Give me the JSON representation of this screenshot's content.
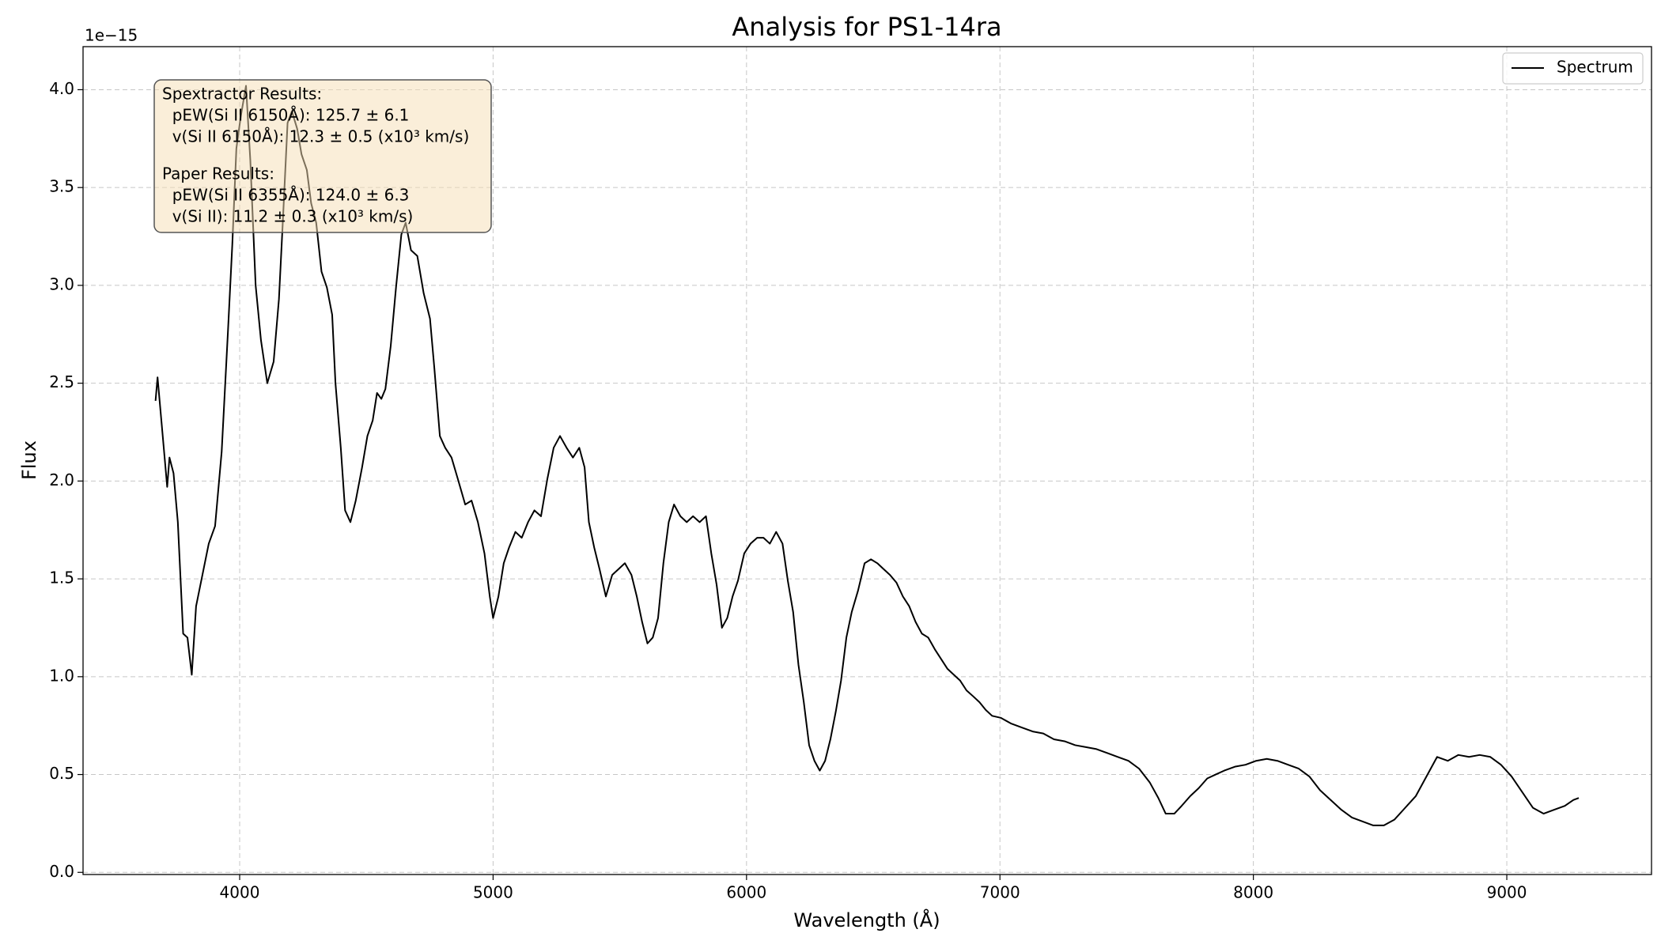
{
  "chart_data": {
    "type": "line",
    "title": "Analysis for PS1-14ra",
    "xlabel": "Wavelength (Å)",
    "ylabel": "Flux",
    "y_offset_label": "1e−15",
    "xlim": [
      3382,
      9571
    ],
    "ylim": [
      -0.011,
      4.22
    ],
    "xticks": [
      4000,
      5000,
      6000,
      7000,
      8000,
      9000
    ],
    "yticks": [
      {
        "value": 0,
        "label": "0.0"
      },
      0.5,
      {
        "value": 1,
        "label": "1.0"
      },
      1.5,
      {
        "value": 2,
        "label": "2.0"
      },
      2.5,
      {
        "value": 3,
        "label": "3.0"
      },
      3.5,
      {
        "value": 4,
        "label": "4.0"
      }
    ],
    "grid": true,
    "legend_position": "upper right",
    "x": [
      3668,
      3676,
      3693,
      3714,
      3723,
      3739,
      3756,
      3777,
      3794,
      3811,
      3828,
      3853,
      3878,
      3903,
      3929,
      3954,
      3971,
      3987,
      4004,
      4025,
      4042,
      4063,
      4084,
      4109,
      4134,
      4155,
      4172,
      4189,
      4206,
      4227,
      4244,
      4265,
      4282,
      4302,
      4323,
      4344,
      4365,
      4378,
      4399,
      4416,
      4437,
      4458,
      4483,
      4504,
      4525,
      4542,
      4559,
      4575,
      4596,
      4617,
      4638,
      4655,
      4676,
      4701,
      4726,
      4751,
      4768,
      4790,
      4811,
      4836,
      4861,
      4890,
      4915,
      4940,
      4966,
      4987,
      5000,
      5021,
      5042,
      5063,
      5088,
      5113,
      5138,
      5163,
      5189,
      5214,
      5239,
      5264,
      5290,
      5315,
      5340,
      5361,
      5378,
      5399,
      5420,
      5445,
      5470,
      5495,
      5520,
      5546,
      5567,
      5588,
      5609,
      5630,
      5651,
      5672,
      5693,
      5714,
      5739,
      5764,
      5789,
      5815,
      5840,
      5861,
      5882,
      5903,
      5924,
      5945,
      5966,
      5991,
      6016,
      6042,
      6067,
      6092,
      6117,
      6142,
      6163,
      6184,
      6205,
      6226,
      6247,
      6268,
      6289,
      6310,
      6331,
      6352,
      6373,
      6394,
      6415,
      6440,
      6466,
      6491,
      6516,
      6541,
      6566,
      6592,
      6617,
      6642,
      6667,
      6692,
      6717,
      6743,
      6768,
      6793,
      6818,
      6843,
      6868,
      6894,
      6919,
      6944,
      6969,
      7003,
      7045,
      7087,
      7129,
      7171,
      7213,
      7255,
      7297,
      7339,
      7381,
      7423,
      7465,
      7507,
      7549,
      7591,
      7625,
      7654,
      7688,
      7717,
      7751,
      7784,
      7818,
      7851,
      7885,
      7927,
      7969,
      8011,
      8053,
      8095,
      8137,
      8179,
      8221,
      8263,
      8305,
      8347,
      8389,
      8431,
      8473,
      8515,
      8557,
      8599,
      8641,
      8683,
      8725,
      8767,
      8809,
      8851,
      8893,
      8935,
      8977,
      9019,
      9061,
      9103,
      9145,
      9187,
      9229,
      9263,
      9284
    ],
    "series": [
      {
        "name": "Spectrum",
        "color": "#000000",
        "values": [
          2.41,
          2.53,
          2.28,
          1.97,
          2.12,
          2.04,
          1.79,
          1.22,
          1.2,
          1.01,
          1.36,
          1.52,
          1.68,
          1.77,
          2.15,
          2.77,
          3.21,
          3.7,
          3.86,
          4.02,
          3.64,
          3.0,
          2.72,
          2.5,
          2.61,
          2.93,
          3.37,
          3.83,
          3.89,
          3.8,
          3.67,
          3.59,
          3.42,
          3.32,
          3.07,
          2.99,
          2.85,
          2.5,
          2.17,
          1.85,
          1.79,
          1.9,
          2.07,
          2.23,
          2.31,
          2.45,
          2.42,
          2.47,
          2.69,
          2.99,
          3.26,
          3.32,
          3.18,
          3.15,
          2.96,
          2.83,
          2.58,
          2.23,
          2.17,
          2.12,
          2.01,
          1.88,
          1.9,
          1.79,
          1.63,
          1.41,
          1.3,
          1.41,
          1.58,
          1.66,
          1.74,
          1.71,
          1.79,
          1.85,
          1.82,
          2.01,
          2.17,
          2.23,
          2.17,
          2.12,
          2.17,
          2.07,
          1.79,
          1.66,
          1.55,
          1.41,
          1.52,
          1.55,
          1.58,
          1.52,
          1.41,
          1.28,
          1.17,
          1.2,
          1.3,
          1.58,
          1.79,
          1.88,
          1.82,
          1.79,
          1.82,
          1.79,
          1.82,
          1.63,
          1.47,
          1.25,
          1.3,
          1.41,
          1.49,
          1.63,
          1.68,
          1.71,
          1.71,
          1.68,
          1.74,
          1.68,
          1.49,
          1.33,
          1.06,
          0.87,
          0.65,
          0.57,
          0.52,
          0.57,
          0.68,
          0.82,
          0.98,
          1.2,
          1.33,
          1.44,
          1.58,
          1.6,
          1.58,
          1.55,
          1.52,
          1.48,
          1.41,
          1.36,
          1.28,
          1.22,
          1.2,
          1.14,
          1.09,
          1.04,
          1.01,
          0.98,
          0.93,
          0.9,
          0.87,
          0.83,
          0.8,
          0.79,
          0.76,
          0.74,
          0.72,
          0.71,
          0.68,
          0.67,
          0.65,
          0.64,
          0.63,
          0.61,
          0.59,
          0.57,
          0.53,
          0.46,
          0.38,
          0.3,
          0.3,
          0.34,
          0.39,
          0.43,
          0.48,
          0.5,
          0.52,
          0.54,
          0.55,
          0.57,
          0.58,
          0.57,
          0.55,
          0.53,
          0.49,
          0.42,
          0.37,
          0.32,
          0.28,
          0.26,
          0.24,
          0.24,
          0.27,
          0.33,
          0.39,
          0.49,
          0.59,
          0.57,
          0.6,
          0.59,
          0.6,
          0.59,
          0.55,
          0.49,
          0.41,
          0.33,
          0.3,
          0.32,
          0.34,
          0.37,
          0.38
        ]
      }
    ],
    "annotation": [
      [
        "Spextractor Results:",
        "  pEW(Si II 6150Å): 125.7 ± 6.1",
        "  v(Si II 6150Å): 12.3 ± 0.5 (x10³ km/s)"
      ],
      [
        "Paper Results:",
        "  pEW(Si II 6355Å): 124.0 ± 6.3",
        "  v(Si II): 11.2 ± 0.3 (x10³ km/s)"
      ]
    ]
  }
}
